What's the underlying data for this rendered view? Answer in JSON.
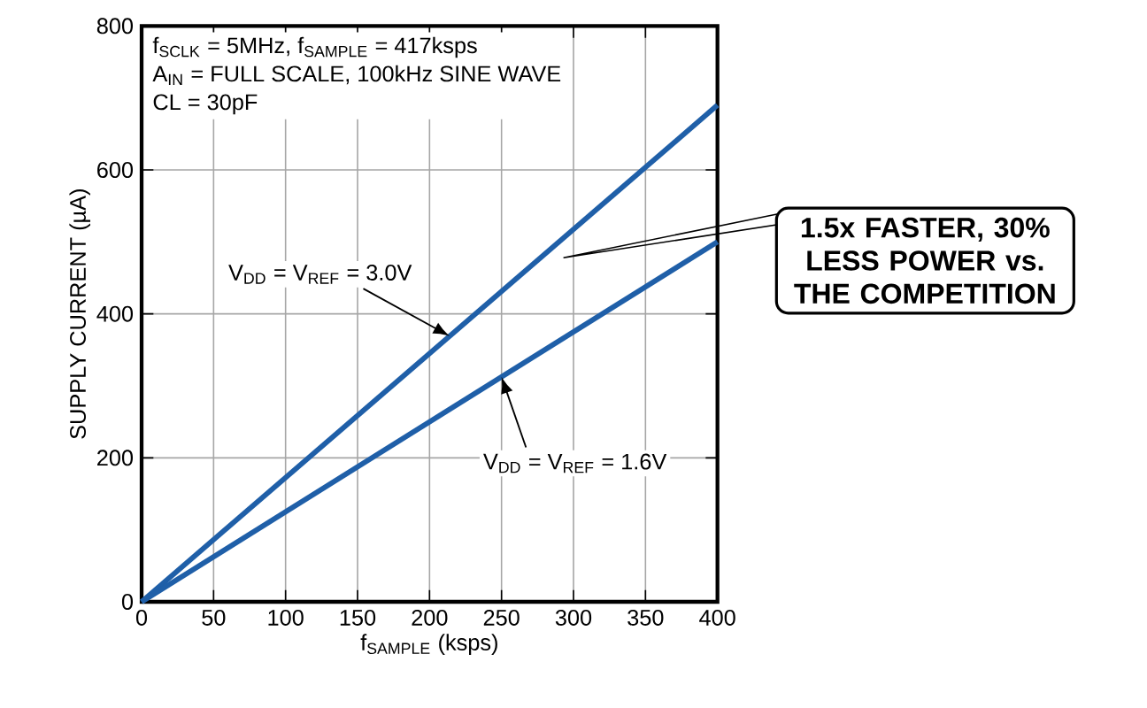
{
  "chart_data": {
    "type": "line",
    "xlabel": "f$_{SAMPLE}$ (ksps)",
    "ylabel": "SUPPLY CURRENT (µA)",
    "xlim": [
      0,
      400
    ],
    "ylim": [
      0,
      800
    ],
    "xticks": [
      0,
      50,
      100,
      150,
      200,
      250,
      300,
      350,
      400
    ],
    "yticks": [
      0,
      200,
      400,
      600,
      800
    ],
    "x": [
      0,
      400
    ],
    "grid": true,
    "legend": false,
    "marker": "none",
    "line_style": "solid",
    "series": [
      {
        "name": "V$_{DD}$ = V$_{REF}$ = 3.0V",
        "color": "#1f5fa8",
        "values": [
          0,
          690
        ]
      },
      {
        "name": "V$_{DD}$ = V$_{REF}$ = 1.6V",
        "color": "#1f5fa8",
        "values": [
          0,
          500
        ]
      }
    ],
    "annotations": [
      "f$_{SCLK}$ = 5MHz, f$_{SAMPLE}$ = 417ksps",
      "A$_{IN}$ = FULL SCALE, 100kHz SINE WAVE",
      "CL = 30pF",
      "**1.5x FASTER, 30% LESS POWER vs. THE COMPETITION**"
    ]
  }
}
